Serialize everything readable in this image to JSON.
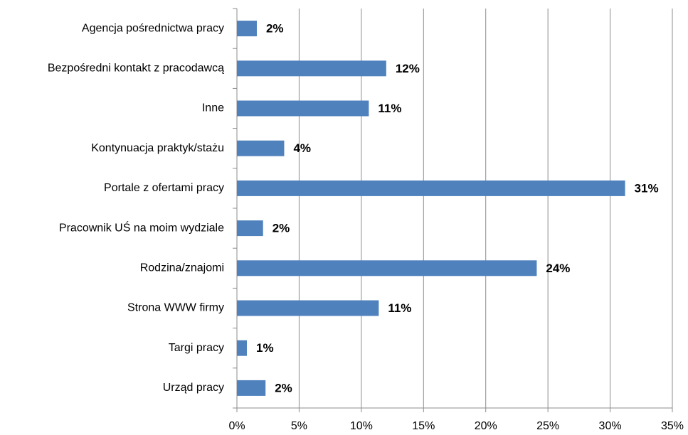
{
  "chart_data": {
    "type": "bar",
    "orientation": "horizontal",
    "categories": [
      "Agencja pośrednictwa pracy",
      "Bezpośredni kontakt z pracodawcą",
      "Inne",
      "Kontynuacja praktyk/stażu",
      "Portale z ofertami pracy",
      "Pracownik UŚ na moim wydziale",
      "Rodzina/znajomi",
      "Strona WWW firmy",
      "Targi pracy",
      "Urząd pracy"
    ],
    "values": [
      1.6,
      12.0,
      10.6,
      3.8,
      31.2,
      2.1,
      24.1,
      11.4,
      0.8,
      2.3
    ],
    "value_labels": [
      "2%",
      "12%",
      "11%",
      "4%",
      "31%",
      "2%",
      "24%",
      "11%",
      "1%",
      "2%"
    ],
    "color": "#4f81bd",
    "xlim": [
      0,
      35
    ],
    "xticks": [
      {
        "value": 0,
        "label": "0%"
      },
      {
        "value": 5,
        "label": "5%"
      },
      {
        "value": 10,
        "label": "10%"
      },
      {
        "value": 15,
        "label": "15%"
      },
      {
        "value": 20,
        "label": "20%"
      },
      {
        "value": 25,
        "label": "25%"
      },
      {
        "value": 30,
        "label": "30%"
      },
      {
        "value": 35,
        "label": "35%"
      }
    ],
    "grid": true
  }
}
